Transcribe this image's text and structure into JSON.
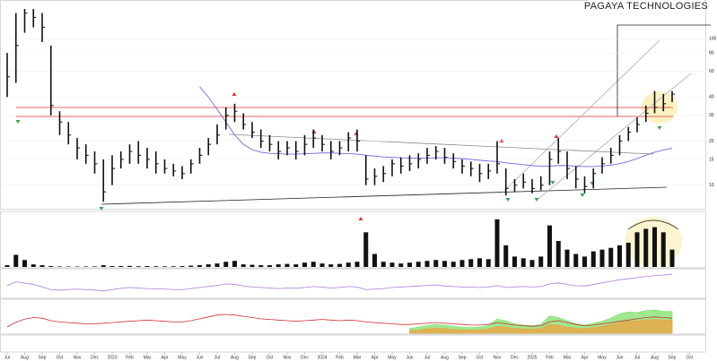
{
  "chart_data": [
    {
      "type": "ohlc",
      "title": "PAGAYA TECHNOLOGIES",
      "color": "#111111",
      "log": true,
      "grid": true,
      "ylim": [
        7,
        160
      ],
      "yticks": [
        10,
        15,
        20,
        30,
        40,
        60,
        80,
        100
      ],
      "close": [
        55,
        90,
        150,
        140,
        120,
        35,
        27,
        22,
        18,
        16,
        14,
        9,
        13,
        15,
        17,
        16,
        15,
        14,
        13,
        12.5,
        12,
        14,
        16,
        19,
        22,
        30,
        32,
        26,
        23,
        20,
        19,
        17,
        18,
        17,
        19,
        21,
        19,
        17,
        18,
        21,
        20,
        11,
        11.5,
        12,
        14,
        13.5,
        14,
        15,
        16,
        17,
        15.5,
        14.5,
        13.5,
        13,
        12,
        12.5,
        14,
        9.5,
        10,
        10.5,
        9.5,
        10,
        15,
        17,
        13,
        11,
        9.8,
        12,
        14,
        16,
        20,
        23,
        26,
        31,
        34,
        36,
        41.88,
        null,
        null,
        null
      ],
      "high": [
        80,
        150,
        160,
        160,
        150,
        90,
        32,
        27,
        21,
        19,
        17,
        15,
        16,
        17,
        19,
        20,
        18,
        17,
        15,
        14,
        13.5,
        15,
        18,
        21,
        26,
        34,
        36,
        31,
        27,
        24,
        22,
        20,
        20,
        20,
        22,
        24,
        22,
        20,
        20,
        23,
        24,
        16,
        13,
        13.5,
        15,
        15.5,
        16,
        16.5,
        18,
        18.5,
        18,
        16.5,
        15,
        14.5,
        14,
        14,
        20,
        13,
        11,
        12,
        11,
        11.5,
        17,
        21,
        17,
        13.5,
        11.5,
        13,
        15.5,
        18,
        22,
        25,
        29,
        35,
        44,
        42,
        44,
        null,
        null,
        null
      ],
      "low": [
        40,
        50,
        110,
        120,
        95,
        30,
        22,
        19,
        15,
        14,
        12,
        7.7,
        10,
        13,
        14,
        14,
        13,
        12,
        12,
        11.5,
        11,
        12,
        14,
        16,
        19,
        24,
        27,
        24,
        21,
        18,
        17,
        15,
        16,
        15,
        16,
        18,
        17,
        15,
        16,
        17,
        17,
        10,
        10,
        10.5,
        11.5,
        12,
        12.5,
        13,
        14,
        15,
        14,
        13,
        12,
        11.5,
        10.5,
        11,
        12,
        8.5,
        9,
        9.5,
        8.8,
        9.2,
        10,
        14,
        11,
        9.5,
        8.8,
        9.5,
        12,
        14,
        16,
        20,
        23,
        27,
        31,
        32,
        37,
        null,
        null,
        null
      ],
      "ma": {
        "color": "#6a6ae0",
        "values": [
          null,
          null,
          null,
          null,
          null,
          null,
          null,
          null,
          null,
          null,
          null,
          null,
          null,
          null,
          null,
          null,
          null,
          null,
          null,
          null,
          null,
          null,
          47,
          40,
          33,
          27,
          22,
          19,
          17.5,
          16.8,
          16.5,
          16.4,
          16.3,
          16.3,
          16.4,
          16.5,
          16.6,
          16.6,
          16.5,
          16.4,
          16.3,
          16.0,
          15.8,
          15.6,
          15.5,
          15.4,
          15.3,
          15.3,
          15.3,
          15.4,
          15.4,
          15.3,
          15.2,
          15.0,
          14.8,
          14.6,
          14.5,
          14.2,
          14.0,
          13.8,
          13.6,
          13.5,
          13.5,
          13.6,
          13.6,
          13.5,
          13.4,
          13.4,
          13.5,
          13.7,
          14.0,
          14.5,
          15.2,
          16.0,
          16.8,
          17.4,
          17.9,
          null,
          null,
          null
        ]
      }
    },
    {
      "type": "bar",
      "color": "#111111",
      "ylim": [
        0,
        60
      ],
      "values": [
        2,
        14,
        8,
        3,
        2,
        1,
        0.6,
        0.5,
        0.5,
        0.6,
        0.6,
        2,
        1,
        1,
        1.2,
        0.8,
        1,
        0.8,
        0.7,
        0.8,
        1,
        1.5,
        2,
        3,
        4,
        6,
        7,
        3,
        2.5,
        2,
        2,
        3,
        3.5,
        3,
        5,
        6,
        4,
        3,
        3.5,
        5,
        6,
        40,
        15,
        6,
        5,
        4,
        5,
        6,
        7,
        8,
        7,
        6,
        8,
        9,
        10,
        9,
        55,
        25,
        12,
        10,
        8,
        12,
        48,
        30,
        20,
        15,
        12,
        18,
        20,
        22,
        25,
        28,
        40,
        44,
        46,
        40,
        20,
        null,
        null,
        null
      ]
    },
    {
      "type": "line",
      "ylim": [
        0,
        100
      ],
      "series": [
        {
          "color": "#b48be6",
          "values": [
            45,
            60,
            55,
            50,
            40,
            30,
            28,
            30,
            32,
            30,
            28,
            25,
            30,
            35,
            38,
            36,
            34,
            33,
            32,
            30,
            30,
            34,
            38,
            42,
            46,
            52,
            50,
            44,
            40,
            38,
            36,
            34,
            36,
            35,
            38,
            42,
            40,
            36,
            38,
            42,
            40,
            30,
            32,
            34,
            38,
            40,
            42,
            44,
            46,
            48,
            44,
            42,
            40,
            40,
            38,
            40,
            46,
            38,
            40,
            42,
            40,
            42,
            52,
            56,
            50,
            45,
            44,
            50,
            56,
            62,
            68,
            72,
            76,
            80,
            84,
            86,
            90,
            null,
            null,
            null
          ]
        }
      ]
    },
    {
      "type": "area",
      "ylim": [
        0,
        100
      ],
      "categories": [
        "Jul",
        null,
        "Aug",
        null,
        "Sep",
        null,
        "Oct",
        null,
        "Nov",
        null,
        "Dec",
        null,
        "2023",
        null,
        "Feb",
        null,
        "Mar",
        null,
        "Apr",
        null,
        "May",
        null,
        "Jun",
        null,
        "Jul",
        null,
        "Aug",
        null,
        "Sep",
        null,
        "Oct",
        null,
        "Nov",
        null,
        "Dec",
        null,
        "2024",
        null,
        "Feb",
        null,
        "Mar",
        null,
        "Apr",
        null,
        "May",
        null,
        "Jun",
        null,
        "Jul",
        null,
        "Aug",
        null,
        "Sep",
        null,
        "Oct",
        null,
        "Nov",
        null,
        "Dec",
        null,
        "2025",
        null,
        "Feb",
        null,
        "Mar",
        null,
        "Apr",
        null,
        "May",
        null,
        "Jun",
        null,
        "Jul",
        null,
        "Aug",
        null,
        "Sep",
        null,
        "Oct",
        null
      ],
      "series": [
        {
          "color": "#7ee06a",
          "fill": true,
          "values": [
            null,
            null,
            null,
            null,
            null,
            null,
            null,
            null,
            null,
            null,
            null,
            null,
            null,
            null,
            null,
            null,
            null,
            null,
            null,
            null,
            null,
            null,
            null,
            null,
            null,
            null,
            null,
            null,
            null,
            null,
            null,
            null,
            null,
            null,
            null,
            null,
            null,
            null,
            null,
            null,
            null,
            null,
            null,
            null,
            null,
            null,
            15,
            20,
            25,
            28,
            26,
            22,
            20,
            18,
            20,
            24,
            45,
            40,
            30,
            26,
            24,
            28,
            55,
            50,
            40,
            30,
            26,
            32,
            38,
            48,
            62,
            68,
            66,
            72,
            74,
            70,
            70,
            null,
            null,
            null
          ]
        },
        {
          "color": "#f0a040",
          "fill": true,
          "values": [
            null,
            null,
            null,
            null,
            null,
            null,
            null,
            null,
            null,
            null,
            null,
            null,
            null,
            null,
            null,
            null,
            null,
            null,
            null,
            null,
            null,
            null,
            null,
            null,
            null,
            null,
            null,
            null,
            null,
            null,
            null,
            null,
            null,
            null,
            null,
            null,
            null,
            null,
            null,
            null,
            null,
            null,
            null,
            null,
            null,
            null,
            8,
            10,
            14,
            16,
            15,
            12,
            11,
            10,
            11,
            13,
            22,
            20,
            16,
            14,
            13,
            15,
            28,
            26,
            20,
            16,
            14,
            18,
            22,
            28,
            34,
            38,
            40,
            42,
            44,
            42,
            42,
            null,
            null,
            null
          ]
        },
        {
          "color": "#d03030",
          "fill": false,
          "values": [
            20,
            35,
            45,
            50,
            48,
            40,
            36,
            34,
            32,
            30,
            30,
            32,
            34,
            36,
            38,
            40,
            42,
            40,
            38,
            36,
            36,
            40,
            46,
            52,
            58,
            60,
            58,
            54,
            50,
            46,
            44,
            42,
            40,
            38,
            40,
            42,
            44,
            42,
            40,
            42,
            40,
            36,
            34,
            32,
            30,
            28,
            28,
            30,
            32,
            34,
            32,
            30,
            28,
            26,
            26,
            28,
            34,
            30,
            26,
            24,
            22,
            24,
            36,
            40,
            34,
            28,
            24,
            26,
            30,
            34,
            38,
            42,
            46,
            50,
            52,
            50,
            48,
            null,
            null,
            null
          ]
        }
      ]
    }
  ]
}
